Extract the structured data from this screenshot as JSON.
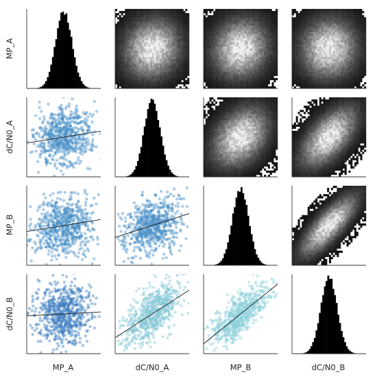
{
  "chart_data": {
    "type": "pairplot",
    "variables": [
      "MP_A",
      "dC/N0_A",
      "MP_B",
      "dC/N0_B"
    ],
    "grid": false,
    "lower_panels": {
      "type": "scatter",
      "with_regression_line": true,
      "panels": [
        {
          "row": 1,
          "col": 0,
          "x": "MP_A",
          "y": "dC/N0_A",
          "correlation": 0.15,
          "color": "#4a90c8"
        },
        {
          "row": 2,
          "col": 0,
          "x": "MP_A",
          "y": "MP_B",
          "correlation": 0.15,
          "color": "#4a90c8"
        },
        {
          "row": 2,
          "col": 1,
          "x": "dC/N0_A",
          "y": "MP_B",
          "correlation": 0.3,
          "color": "#4a90c8"
        },
        {
          "row": 3,
          "col": 0,
          "x": "MP_A",
          "y": "dC/N0_B",
          "correlation": 0.05,
          "color": "#3d7fc2"
        },
        {
          "row": 3,
          "col": 1,
          "x": "dC/N0_A",
          "y": "dC/N0_B",
          "correlation": 0.6,
          "color": "#86c8d8"
        },
        {
          "row": 3,
          "col": 2,
          "x": "MP_B",
          "y": "dC/N0_B",
          "correlation": 0.75,
          "color": "#8ed0dc"
        }
      ]
    },
    "diagonal_panels": {
      "type": "histogram",
      "color": "#000000",
      "panels": [
        {
          "variable": "MP_A",
          "sd": 0.11
        },
        {
          "variable": "dC/N0_A",
          "sd": 0.11
        },
        {
          "variable": "MP_B",
          "sd": 0.11
        },
        {
          "variable": "dC/N0_B",
          "sd": 0.11
        }
      ]
    },
    "upper_panels": {
      "type": "heatmap",
      "colormap": "gray",
      "panels": [
        {
          "row": 0,
          "col": 1,
          "x": "dC/N0_A",
          "y": "MP_A",
          "correlation": 0.1
        },
        {
          "row": 0,
          "col": 2,
          "x": "MP_B",
          "y": "MP_A",
          "correlation": 0.1
        },
        {
          "row": 0,
          "col": 3,
          "x": "dC/N0_B",
          "y": "MP_A",
          "correlation": 0.05
        },
        {
          "row": 1,
          "col": 2,
          "x": "MP_B",
          "y": "dC/N0_A",
          "correlation": 0.35
        },
        {
          "row": 1,
          "col": 3,
          "x": "dC/N0_B",
          "y": "dC/N0_A",
          "correlation": 0.6
        },
        {
          "row": 2,
          "col": 3,
          "x": "dC/N0_B",
          "y": "MP_B",
          "correlation": 0.8
        }
      ]
    },
    "legend": "none"
  }
}
